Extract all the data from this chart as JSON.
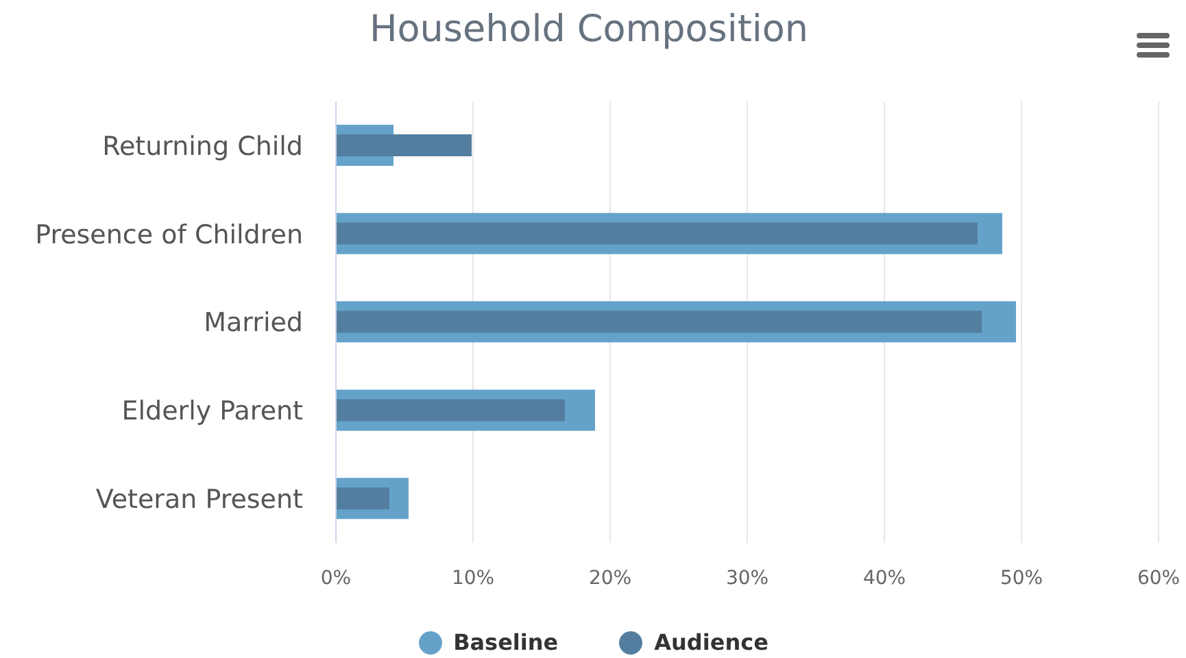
{
  "chart_data": {
    "type": "bar",
    "title": "Household Composition",
    "orientation": "horizontal",
    "categories": [
      "Returning Child",
      "Presence of Children",
      "Married",
      "Elderly Parent",
      "Veteran Present"
    ],
    "series": [
      {
        "name": "Baseline",
        "color": "#65a2ca",
        "values": [
          4.2,
          48.6,
          49.6,
          18.9,
          5.3
        ]
      },
      {
        "name": "Audience",
        "color": "#537e9f",
        "values": [
          9.9,
          46.8,
          47.1,
          16.7,
          3.9
        ]
      }
    ],
    "xlim": [
      0,
      60
    ],
    "xticks": [
      {
        "value": 0,
        "label": "0%"
      },
      {
        "value": 10,
        "label": "10%"
      },
      {
        "value": 20,
        "label": "20%"
      },
      {
        "value": 30,
        "label": "30%"
      },
      {
        "value": 40,
        "label": "40%"
      },
      {
        "value": 50,
        "label": "50%"
      },
      {
        "value": 60,
        "label": "60%"
      }
    ],
    "grid": "x",
    "legend": "bottom"
  }
}
